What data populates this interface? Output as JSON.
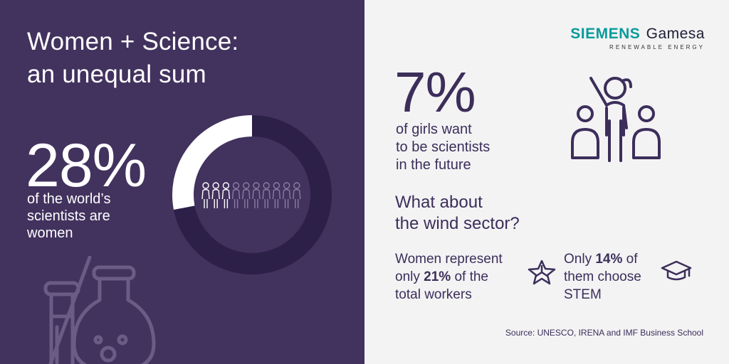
{
  "left": {
    "title_line1": "Women + Science:",
    "title_line2": "an unequal sum",
    "big_percent": "28%",
    "subtitle_line1": "of the world’s",
    "subtitle_line2": "scientists are",
    "subtitle_line3": "women",
    "donut_fraction": 0.28
  },
  "right": {
    "logo_brand": "SIEMENS",
    "logo_brand2": "Gamesa",
    "logo_tagline": "RENEWABLE ENERGY",
    "big_percent": "7%",
    "sub_line1": "of girls want",
    "sub_line2": "to be scientists",
    "sub_line3": "in the future",
    "heading_line1": "What about",
    "heading_line2": "the wind sector?",
    "stat1_line1": "Women represent",
    "stat1_pre": "only ",
    "stat1_bold": "21%",
    "stat1_post": " of the",
    "stat1_line3": "total workers",
    "stat2_pre": "Only ",
    "stat2_bold": "14%",
    "stat2_post": " of",
    "stat2_line2": "them choose",
    "stat2_line3": "STEM",
    "source": "Source: UNESCO, IRENA and IMF Business School"
  },
  "colors": {
    "purple": "#42325e",
    "light_bg": "#f3f3f4",
    "brand_teal": "#0a9b9b"
  },
  "icons": [
    "women-people-icon",
    "flask-icon",
    "beaker-icon",
    "teacher-students-icon",
    "wind-turbine-star-icon",
    "graduation-cap-icon"
  ]
}
